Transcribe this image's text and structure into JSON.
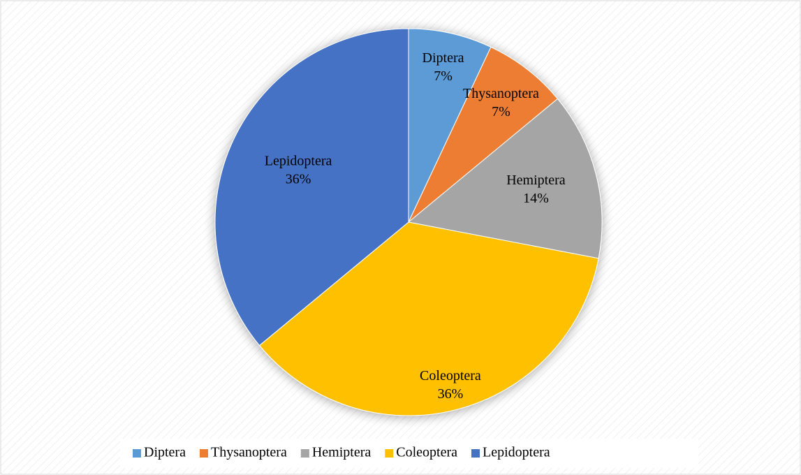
{
  "chart_data": {
    "type": "pie",
    "categories": [
      "Diptera",
      "Thysanoptera",
      "Hemiptera",
      "Coleoptera",
      "Lepidoptera"
    ],
    "values": [
      7,
      7,
      14,
      36,
      36
    ],
    "value_labels": [
      "7%",
      "7%",
      "14%",
      "36%",
      "36%"
    ],
    "colors": [
      "#5b9bd5",
      "#ed7d31",
      "#a5a5a5",
      "#ffc000",
      "#4472c4"
    ],
    "legend": "bottom"
  }
}
